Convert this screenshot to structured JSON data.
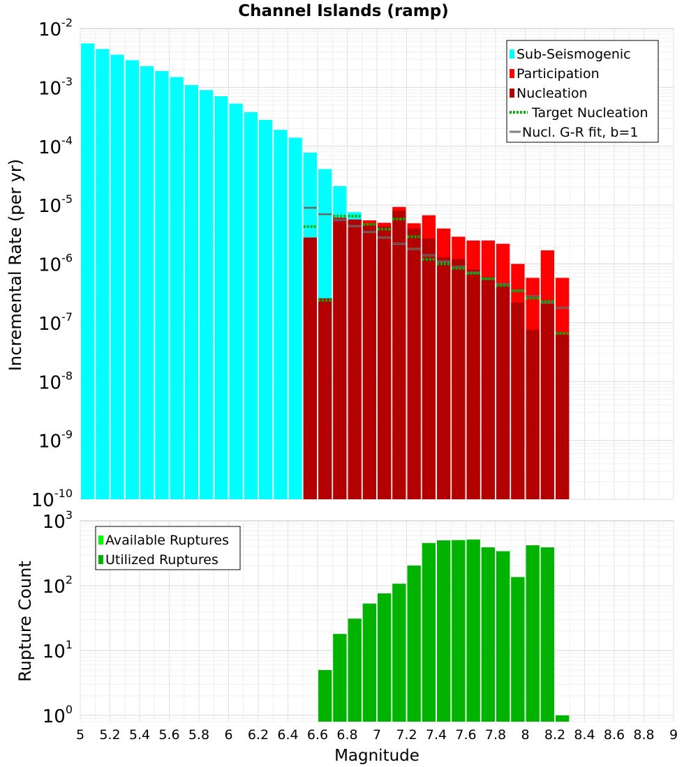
{
  "chart_data": [
    {
      "type": "bar",
      "title": "Channel Islands (ramp)",
      "ylabel": "Incremental Rate (per yr)",
      "xlabel": "",
      "xlim": [
        5,
        9
      ],
      "ylim": [
        1e-10,
        0.01
      ],
      "yscale": "log",
      "bin_width": 0.1,
      "y_tick_labels": [
        {
          "base": "10",
          "exp": "-10"
        },
        {
          "base": "10",
          "exp": "-9"
        },
        {
          "base": "10",
          "exp": "-8"
        },
        {
          "base": "10",
          "exp": "-7"
        },
        {
          "base": "10",
          "exp": "-6"
        },
        {
          "base": "10",
          "exp": "-5"
        },
        {
          "base": "10",
          "exp": "-4"
        },
        {
          "base": "10",
          "exp": "-3"
        },
        {
          "base": "10",
          "exp": "-2"
        }
      ],
      "legend": [
        {
          "label": "Sub-Seismogenic",
          "color": "#00ffff",
          "kind": "box"
        },
        {
          "label": "Participation",
          "color": "#ff0000",
          "kind": "box"
        },
        {
          "label": "Nucleation",
          "color": "#b30000",
          "kind": "box"
        },
        {
          "label": "Target Nucleation",
          "color": "#00b300",
          "kind": "dotted"
        },
        {
          "label": "Nucl. G-R fit, b=1",
          "color": "#808080",
          "kind": "line"
        }
      ],
      "series": [
        {
          "name": "Sub-Seismogenic",
          "color": "#00ffff",
          "x": [
            5.05,
            5.15,
            5.25,
            5.35,
            5.45,
            5.55,
            5.65,
            5.75,
            5.85,
            5.95,
            6.05,
            6.15,
            6.25,
            6.35,
            6.45,
            6.55,
            6.65,
            6.75,
            6.85
          ],
          "values": [
            0.0056,
            0.0045,
            0.0036,
            0.0029,
            0.0023,
            0.0019,
            0.0015,
            0.0011,
            0.0009,
            0.00071,
            0.00053,
            0.00038,
            0.00028,
            0.00019,
            0.00014,
            7.8e-05,
            4.1e-05,
            2.1e-05,
            7.6e-06
          ]
        },
        {
          "name": "Participation",
          "color": "#ff0000",
          "x": [
            6.55,
            6.65,
            6.75,
            6.85,
            6.95,
            7.05,
            7.15,
            7.25,
            7.35,
            7.45,
            7.55,
            7.65,
            7.75,
            7.85,
            7.95,
            8.05,
            8.15,
            8.25
          ],
          "values": [
            2.8e-06,
            2.6e-07,
            6.1e-06,
            5.7e-06,
            5.5e-06,
            5e-06,
            9.3e-06,
            4.9e-06,
            6.7e-06,
            4e-06,
            2.9e-06,
            2.5e-06,
            2.5e-06,
            2.2e-06,
            1e-06,
            5.8e-07,
            1.7e-06,
            5.8e-07
          ]
        },
        {
          "name": "Nucleation",
          "color": "#b30000",
          "x": [
            6.55,
            6.65,
            6.75,
            6.85,
            6.95,
            7.05,
            7.15,
            7.25,
            7.35,
            7.45,
            7.55,
            7.65,
            7.75,
            7.85,
            7.95,
            8.05,
            8.15,
            8.25
          ],
          "values": [
            2.8e-06,
            2.6e-07,
            6e-06,
            5.6e-06,
            4.5e-06,
            4.3e-06,
            8e-06,
            4e-06,
            2.7e-06,
            1.3e-06,
            1.2e-06,
            8e-07,
            6e-07,
            4.7e-07,
            2.2e-07,
            7.6e-08,
            2.3e-07,
            6.3e-08
          ]
        },
        {
          "name": "Target Nucleation",
          "color": "#00b300",
          "x": [
            6.55,
            6.65,
            6.75,
            6.85,
            6.95,
            7.05,
            7.15,
            7.25,
            7.35,
            7.45,
            7.55,
            7.65,
            7.75,
            7.85,
            7.95,
            8.05,
            8.15,
            8.25
          ],
          "values": [
            4.3e-06,
            2.4e-07,
            6.5e-06,
            6.5e-06,
            4.7e-06,
            3.9e-06,
            5.8e-06,
            2.9e-06,
            1.2e-06,
            1e-06,
            8.4e-07,
            6.9e-07,
            5.6e-07,
            4.3e-07,
            3.5e-07,
            2.6e-07,
            2.3e-07,
            6.6e-08
          ]
        },
        {
          "name": "Nucl. G-R fit, b=1",
          "color": "#808080",
          "x": [
            6.55,
            6.65,
            6.75,
            6.85,
            6.95,
            7.05,
            7.15,
            7.25,
            7.35,
            7.45,
            7.55,
            7.65,
            7.75,
            7.85,
            7.95,
            8.05,
            8.15,
            8.25
          ],
          "values": [
            9e-06,
            7e-06,
            5.6e-06,
            4.4e-06,
            3.5e-06,
            2.8e-06,
            2.2e-06,
            1.8e-06,
            1.4e-06,
            1.1e-06,
            8.9e-07,
            7.1e-07,
            5.6e-07,
            4.5e-07,
            3.5e-07,
            2.8e-07,
            2.2e-07,
            1.8e-07
          ]
        }
      ]
    },
    {
      "type": "bar",
      "title": "",
      "ylabel": "Rupture Count",
      "xlabel": "Magnitude",
      "xlim": [
        5,
        9
      ],
      "ylim": [
        0.8,
        1000
      ],
      "yscale": "log",
      "bin_width": 0.1,
      "x_tick_labels": [
        "5",
        "5.2",
        "5.4",
        "5.6",
        "5.8",
        "6",
        "6.2",
        "6.4",
        "6.6",
        "6.8",
        "7",
        "7.2",
        "7.4",
        "7.6",
        "7.8",
        "8",
        "8.2",
        "8.4",
        "8.6",
        "8.8",
        "9"
      ],
      "y_tick_labels": [
        {
          "base": "10",
          "exp": "0"
        },
        {
          "base": "10",
          "exp": "1"
        },
        {
          "base": "10",
          "exp": "2"
        },
        {
          "base": "10",
          "exp": "3"
        }
      ],
      "legend": [
        {
          "label": "Available Ruptures",
          "color": "#00ff00",
          "kind": "box"
        },
        {
          "label": "Utilized Ruptures",
          "color": "#00b300",
          "kind": "box"
        }
      ],
      "series": [
        {
          "name": "Available Ruptures",
          "color": "#00ff00",
          "x": [
            6.65,
            6.75,
            6.85,
            6.95,
            7.05,
            7.15,
            7.25,
            7.35,
            7.45,
            7.55,
            7.65,
            7.75,
            7.85,
            7.95,
            8.05,
            8.15,
            8.25
          ],
          "values": [
            5,
            18,
            31,
            53,
            76,
            107,
            204,
            455,
            500,
            505,
            515,
            390,
            340,
            136,
            420,
            390,
            1
          ]
        },
        {
          "name": "Utilized Ruptures",
          "color": "#00b300",
          "x": [
            6.65,
            6.75,
            6.85,
            6.95,
            7.05,
            7.15,
            7.25,
            7.35,
            7.45,
            7.55,
            7.65,
            7.75,
            7.85,
            7.95,
            8.05,
            8.15,
            8.25
          ],
          "values": [
            5,
            18,
            31,
            53,
            76,
            107,
            204,
            455,
            500,
            505,
            515,
            390,
            340,
            136,
            420,
            390,
            1
          ]
        }
      ]
    }
  ]
}
